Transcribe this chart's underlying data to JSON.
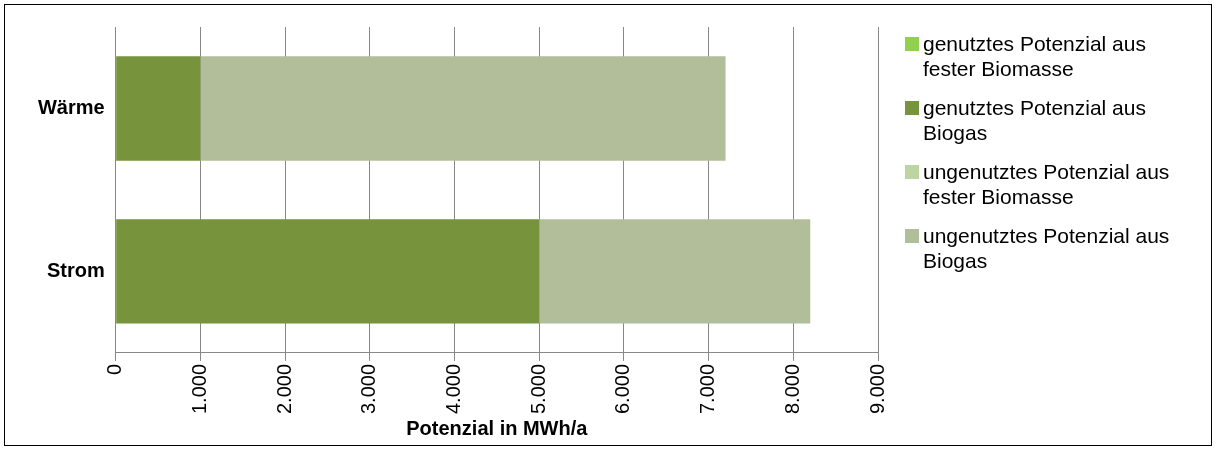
{
  "chart_data": {
    "type": "bar",
    "orientation": "horizontal",
    "stacked": true,
    "xlabel": "Potenzial in MWh/a",
    "categories": [
      "Wärme",
      "Strom"
    ],
    "series": [
      {
        "name": "genutztes Potenzial aus fester Biomasse",
        "color": "#92d050",
        "values": [
          0,
          0
        ]
      },
      {
        "name": "genutztes Potenzial aus Biogas",
        "color": "#77933c",
        "values": [
          1000,
          5000
        ]
      },
      {
        "name": "ungenutztes Potenzial aus fester Biomasse",
        "color": "#bcd5a2",
        "values": [
          0,
          0
        ]
      },
      {
        "name": "ungenutztes Potenzial aus Biogas",
        "color": "#b2bd9a",
        "values": [
          6200,
          3200
        ]
      }
    ],
    "xlim": [
      0,
      9000
    ],
    "xticks": [
      0,
      {
        "value": 1000,
        "label": "1.000"
      },
      {
        "value": 2000,
        "label": "2.000"
      },
      {
        "value": 3000,
        "label": "3.000"
      },
      {
        "value": 4000,
        "label": "4.000"
      },
      {
        "value": 5000,
        "label": "5.000"
      },
      {
        "value": 6000,
        "label": "6.000"
      },
      {
        "value": 7000,
        "label": "7.000"
      },
      {
        "value": 8000,
        "label": "8.000"
      },
      {
        "value": 9000,
        "label": "9.000"
      }
    ],
    "grid": "x",
    "legend": "right"
  }
}
